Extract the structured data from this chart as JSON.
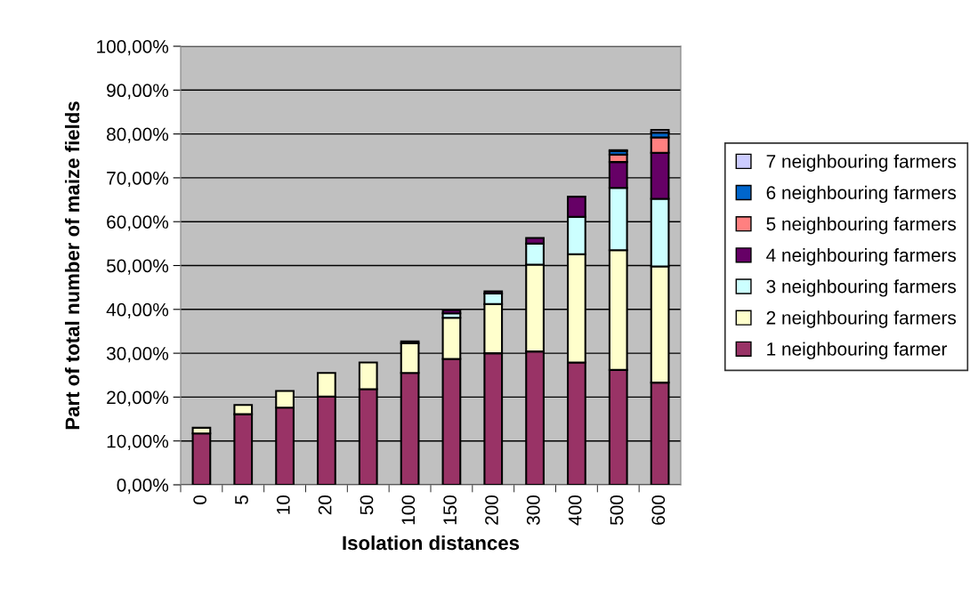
{
  "chart_data": {
    "type": "bar",
    "stacked": true,
    "xlabel": "Isolation distances",
    "ylabel": "Part of total number of maize fields",
    "categories": [
      "0",
      "5",
      "10",
      "20",
      "50",
      "100",
      "150",
      "200",
      "300",
      "400",
      "500",
      "600"
    ],
    "series": [
      {
        "name": "1 neighbouring farmer",
        "color": "#993366",
        "values": [
          11.7,
          16.1,
          17.6,
          20.1,
          21.8,
          25.5,
          28.7,
          30.0,
          30.4,
          27.9,
          26.2,
          23.3
        ]
      },
      {
        "name": "2 neighbouring farmers",
        "color": "#ffffcc",
        "values": [
          1.3,
          2.1,
          3.8,
          5.4,
          6.1,
          6.8,
          9.4,
          11.2,
          19.8,
          24.7,
          27.3,
          26.5
        ]
      },
      {
        "name": "3 neighbouring farmers",
        "color": "#ccffff",
        "values": [
          null,
          null,
          null,
          null,
          null,
          null,
          1.0,
          2.4,
          4.8,
          8.5,
          14.2,
          15.4
        ]
      },
      {
        "name": "4 neighbouring farmers",
        "color": "#660066",
        "values": [
          null,
          null,
          null,
          null,
          null,
          0.4,
          0.7,
          0.5,
          1.3,
          4.6,
          5.9,
          10.5
        ]
      },
      {
        "name": "5 neighbouring farmers",
        "color": "#ff8080",
        "values": [
          null,
          null,
          null,
          null,
          null,
          null,
          null,
          null,
          null,
          null,
          1.7,
          3.5
        ]
      },
      {
        "name": "6 neighbouring farmers",
        "color": "#0066cc",
        "values": [
          null,
          null,
          null,
          null,
          null,
          null,
          null,
          null,
          null,
          null,
          0.8,
          1.1
        ]
      },
      {
        "name": "7 neighbouring farmers",
        "color": "#ccccff",
        "values": [
          null,
          null,
          null,
          null,
          null,
          null,
          null,
          null,
          null,
          null,
          0.2,
          0.6
        ]
      }
    ],
    "ylim": [
      0,
      100
    ],
    "yticks": [
      {
        "value": 0,
        "label": "0,00%"
      },
      {
        "value": 10,
        "label": "10,00%"
      },
      {
        "value": 20,
        "label": "20,00%"
      },
      {
        "value": 30,
        "label": "30,00%"
      },
      {
        "value": 40,
        "label": "40,00%"
      },
      {
        "value": 50,
        "label": "50,00%"
      },
      {
        "value": 60,
        "label": "60,00%"
      },
      {
        "value": 70,
        "label": "70,00%"
      },
      {
        "value": 80,
        "label": "80,00%"
      },
      {
        "value": 90,
        "label": "90,00%"
      },
      {
        "value": 100,
        "label": "100,00%"
      }
    ],
    "grid": "y",
    "legend": "right"
  }
}
